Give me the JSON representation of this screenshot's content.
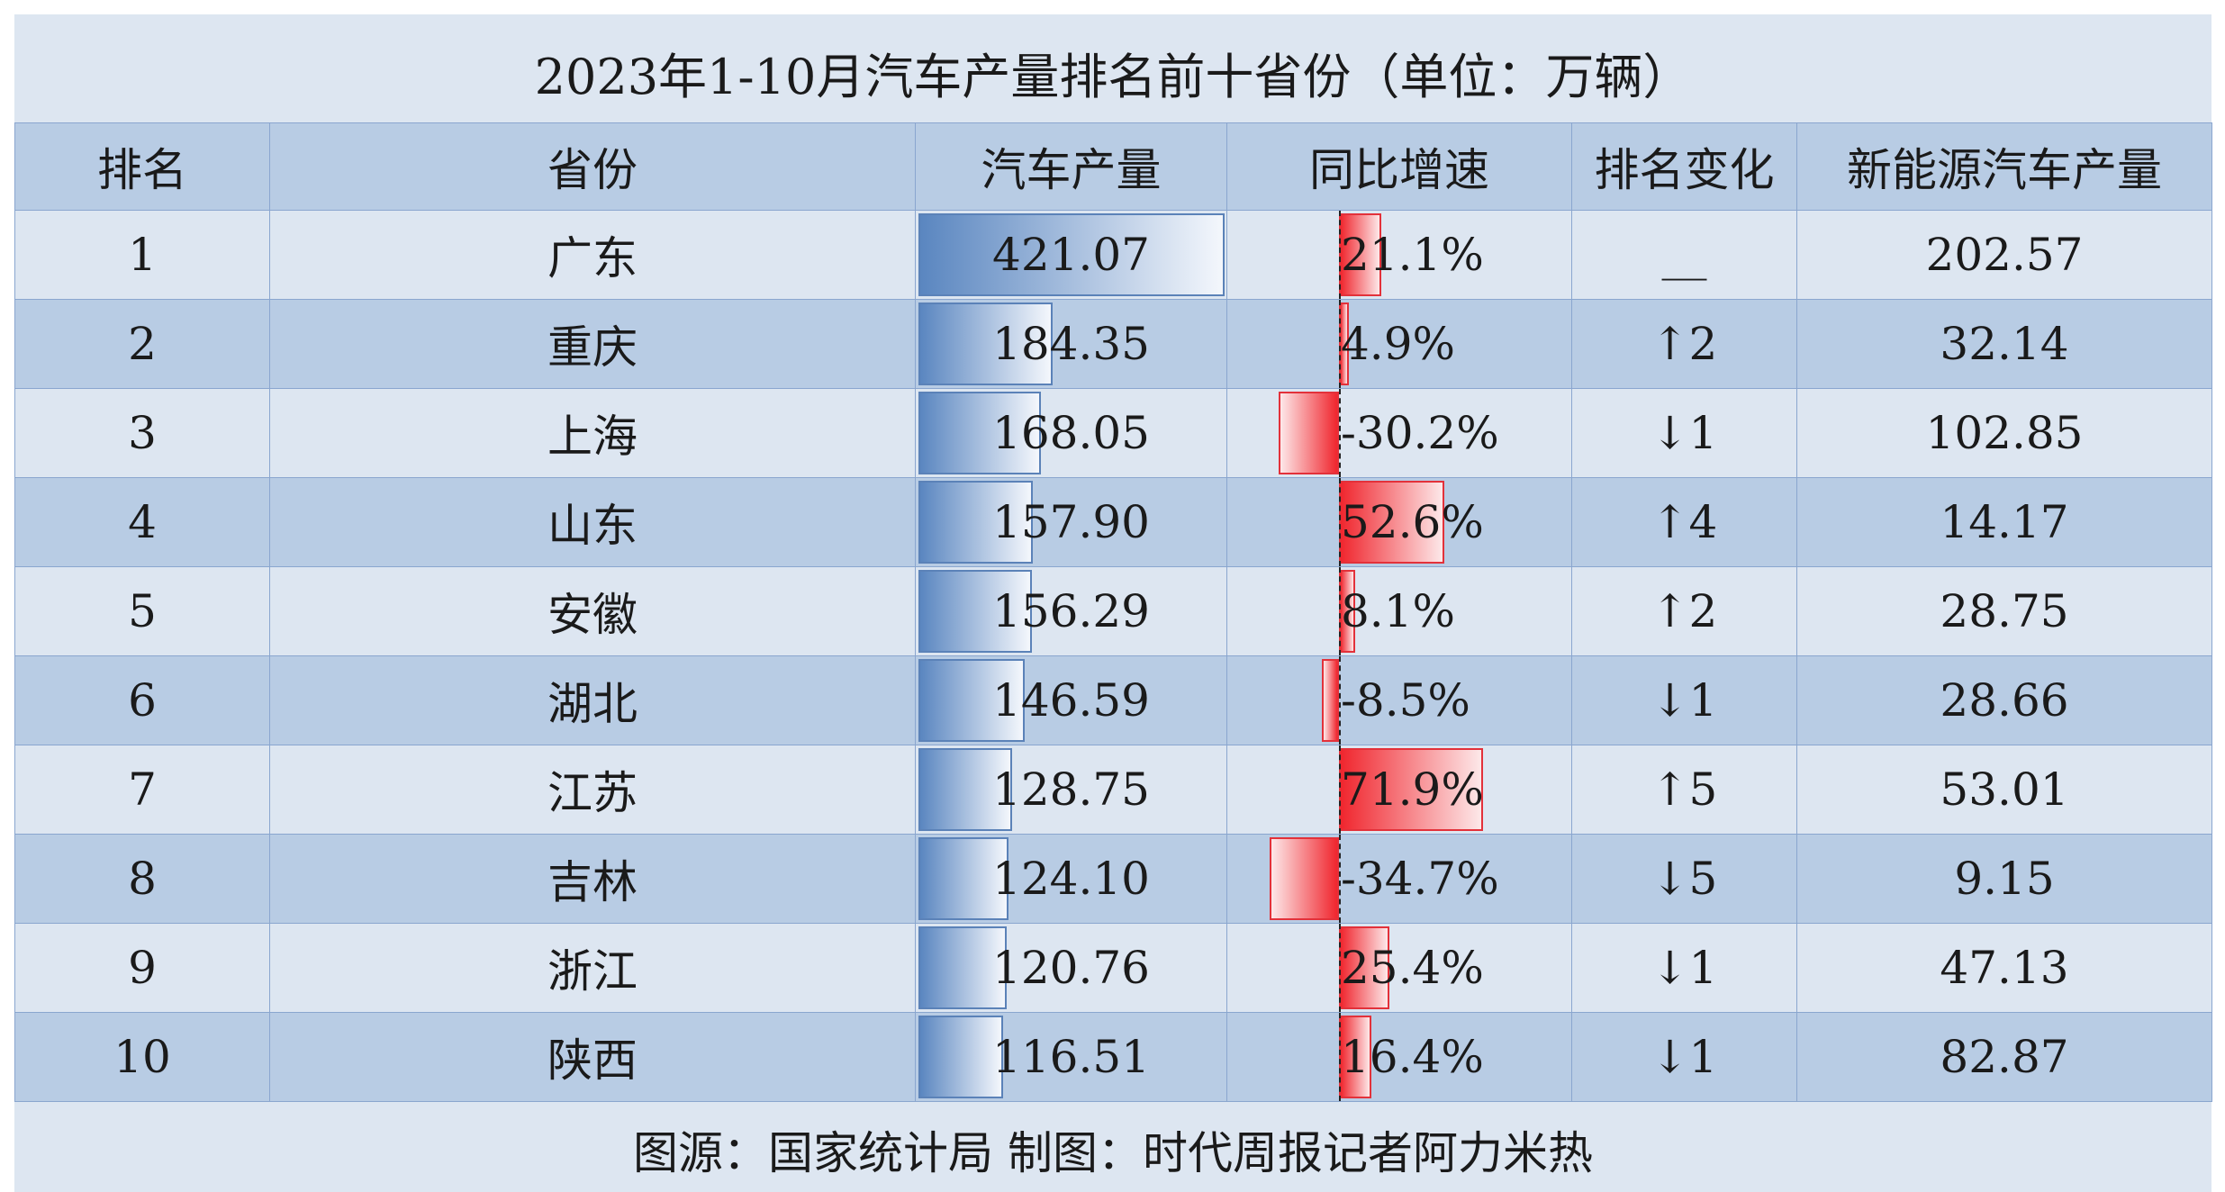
{
  "title": "2023年1-10月汽车产量排名前十省份（单位：万辆）",
  "footer": "图源：国家统计局 制图：时代周报记者阿力米热",
  "headers": [
    "排名",
    "省份",
    "汽车产量",
    "同比增速",
    "排名变化",
    "新能源汽车产量"
  ],
  "colors": {
    "header_bg": "#b8cce4",
    "row_light": "#dde6f1",
    "row_dark": "#b8cce4",
    "bar_blue": "#5a86c0",
    "bar_red": "#f0262e",
    "border": "#8aa6cf"
  },
  "chart_data": {
    "type": "table",
    "columns": [
      "排名",
      "省份",
      "汽车产量",
      "同比增速",
      "排名变化",
      "新能源汽车产量"
    ],
    "rows": [
      {
        "rank": "1",
        "province": "广东",
        "production": 421.07,
        "production_label": "421.07",
        "growth": 21.1,
        "growth_label": "21.1%",
        "rank_change": "__",
        "nev": "202.57"
      },
      {
        "rank": "2",
        "province": "重庆",
        "production": 184.35,
        "production_label": "184.35",
        "growth": 4.9,
        "growth_label": "4.9%",
        "rank_change": "↑2",
        "nev": "32.14"
      },
      {
        "rank": "3",
        "province": "上海",
        "production": 168.05,
        "production_label": "168.05",
        "growth": -30.2,
        "growth_label": "-30.2%",
        "rank_change": "↓1",
        "nev": "102.85"
      },
      {
        "rank": "4",
        "province": "山东",
        "production": 157.9,
        "production_label": "157.90",
        "growth": 52.6,
        "growth_label": "52.6%",
        "rank_change": "↑4",
        "nev": "14.17"
      },
      {
        "rank": "5",
        "province": "安徽",
        "production": 156.29,
        "production_label": "156.29",
        "growth": 8.1,
        "growth_label": "8.1%",
        "rank_change": "↑2",
        "nev": "28.75"
      },
      {
        "rank": "6",
        "province": "湖北",
        "production": 146.59,
        "production_label": "146.59",
        "growth": -8.5,
        "growth_label": "-8.5%",
        "rank_change": "↓1",
        "nev": "28.66"
      },
      {
        "rank": "7",
        "province": "江苏",
        "production": 128.75,
        "production_label": "128.75",
        "growth": 71.9,
        "growth_label": "71.9%",
        "rank_change": "↑5",
        "nev": "53.01"
      },
      {
        "rank": "8",
        "province": "吉林",
        "production": 124.1,
        "production_label": "124.10",
        "growth": -34.7,
        "growth_label": "-34.7%",
        "rank_change": "↓5",
        "nev": "9.15"
      },
      {
        "rank": "9",
        "province": "浙江",
        "production": 120.76,
        "production_label": "120.76",
        "growth": 25.4,
        "growth_label": "25.4%",
        "rank_change": "↓1",
        "nev": "47.13"
      },
      {
        "rank": "10",
        "province": "陕西",
        "production": 116.51,
        "production_label": "116.51",
        "growth": 16.4,
        "growth_label": "16.4%",
        "rank_change": "↓1",
        "nev": "82.87"
      }
    ]
  }
}
